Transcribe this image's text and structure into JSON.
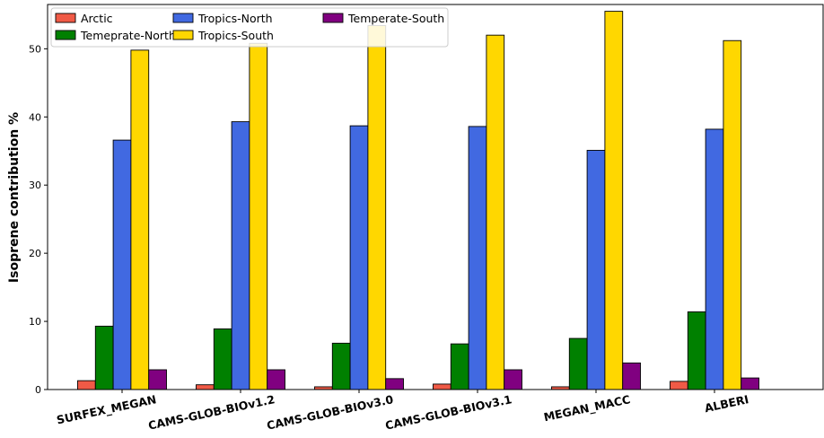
{
  "chart_data": {
    "type": "bar",
    "title": "",
    "xlabel": "",
    "ylabel": "Isoprene contribution %",
    "ylim": [
      0,
      56.5
    ],
    "yticks": [
      0,
      10,
      20,
      30,
      40,
      50
    ],
    "grid": false,
    "legend_position": "top-left",
    "categories": [
      "SURFEX_MEGAN",
      "CAMS-GLOB-BIOv1.2",
      "CAMS-GLOB-BIOv3.0",
      "CAMS-GLOB-BIOv3.1",
      "MEGAN_MACC",
      "ALBERI"
    ],
    "series": [
      {
        "name": "Arctic",
        "color": "#f05a46",
        "values": [
          1.3,
          0.7,
          0.4,
          0.8,
          0.4,
          1.2
        ]
      },
      {
        "name": "Temeprate-North",
        "color": "#008000",
        "values": [
          9.3,
          8.9,
          6.8,
          6.7,
          7.5,
          11.4
        ]
      },
      {
        "name": "Tropics-North",
        "color": "#4169e1",
        "values": [
          36.6,
          39.3,
          38.7,
          38.6,
          35.1,
          38.2
        ]
      },
      {
        "name": "Tropics-South",
        "color": "#ffd700",
        "values": [
          49.8,
          50.8,
          53.4,
          52.0,
          55.5,
          51.2
        ]
      },
      {
        "name": "Temperate-South",
        "color": "#800080",
        "values": [
          2.9,
          2.9,
          1.6,
          2.9,
          3.9,
          1.7
        ]
      }
    ]
  }
}
